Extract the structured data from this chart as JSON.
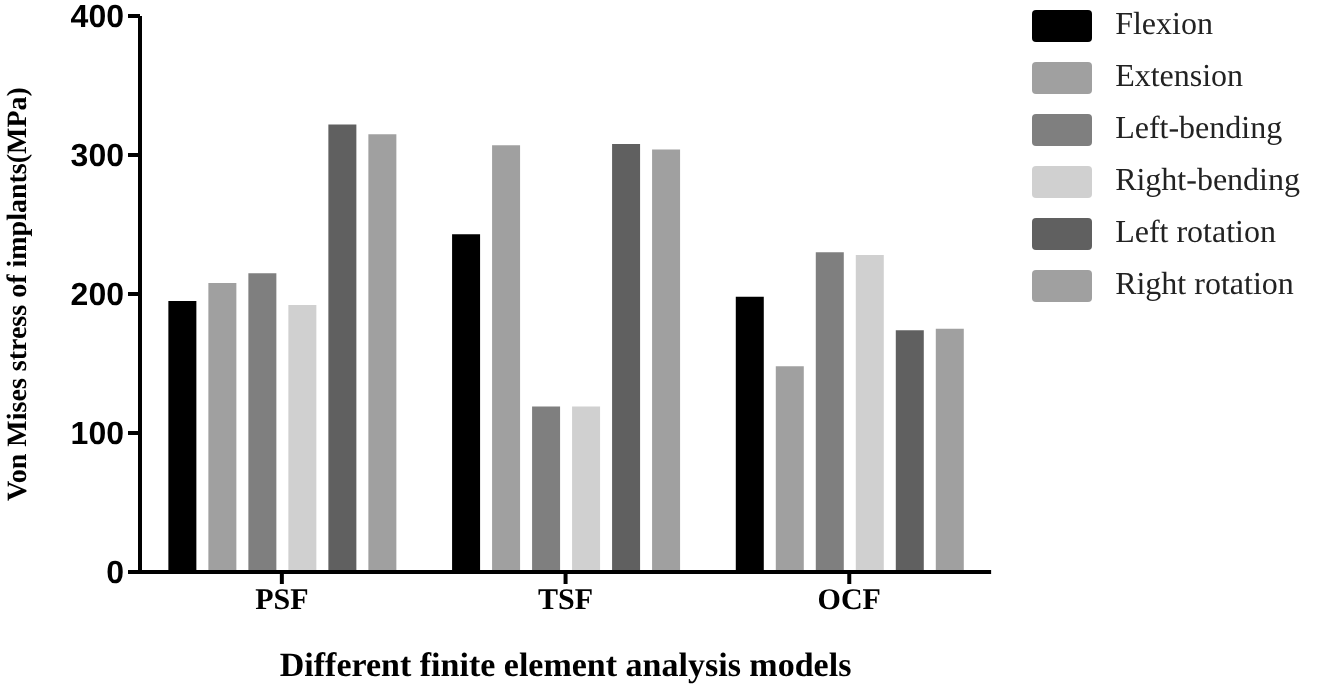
{
  "chart_data": {
    "type": "bar",
    "xlabel": "Different finite element analysis models",
    "ylabel": "Von Mises stress of implants(MPa)",
    "categories": [
      "PSF",
      "TSF",
      "OCF"
    ],
    "series": [
      {
        "name": "Flexion",
        "color": "#000000",
        "values": [
          195,
          243,
          198
        ]
      },
      {
        "name": "Extension",
        "color": "#a0a0a0",
        "values": [
          208,
          307,
          148
        ]
      },
      {
        "name": "Left-bending",
        "color": "#7f7f7f",
        "values": [
          215,
          119,
          230
        ]
      },
      {
        "name": "Right-bending",
        "color": "#d0d0d0",
        "values": [
          192,
          119,
          228
        ]
      },
      {
        "name": "Left rotation",
        "color": "#606060",
        "values": [
          322,
          308,
          174
        ]
      },
      {
        "name": "Right rotation",
        "color": "#a0a0a0",
        "values": [
          315,
          304,
          175
        ]
      }
    ],
    "ylim": [
      0,
      400
    ],
    "yticks": [
      0,
      100,
      200,
      300,
      400
    ],
    "grid": false,
    "legend": "right"
  }
}
